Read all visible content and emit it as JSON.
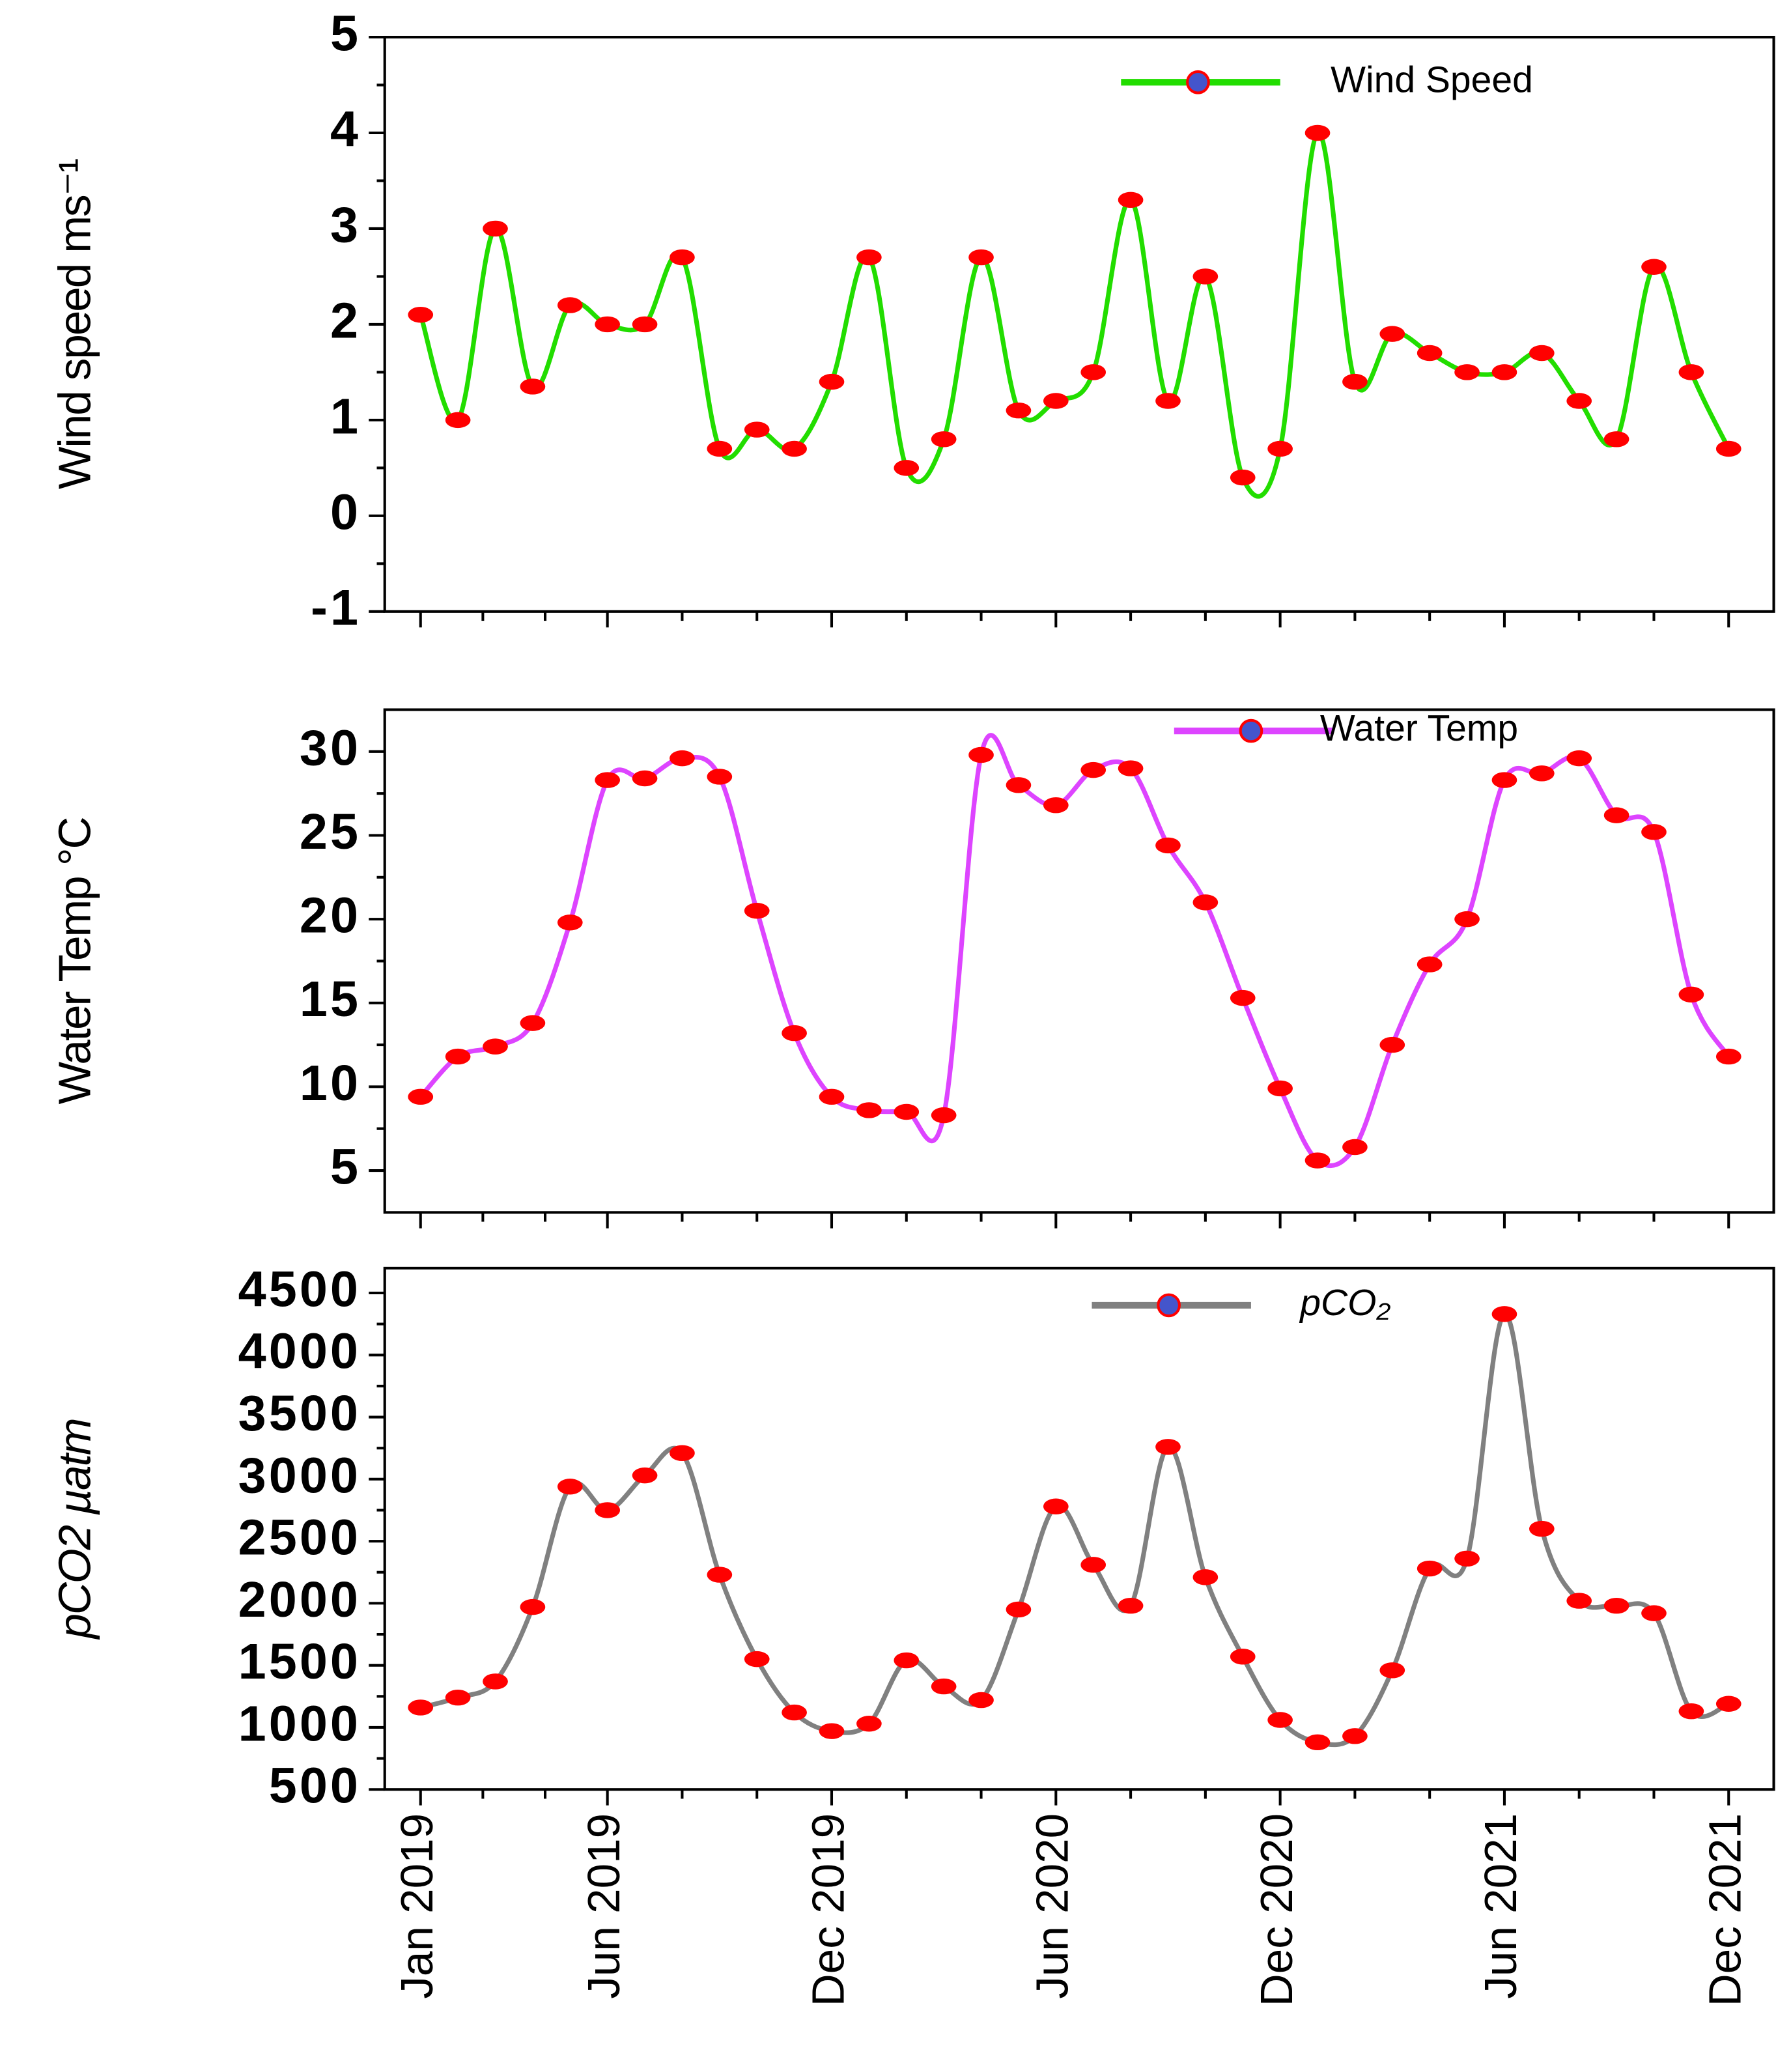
{
  "chart_data": [
    {
      "type": "line",
      "ylabel": "Wind speed ms⁻¹",
      "x": [
        "2019-01",
        "2019-02",
        "2019-03",
        "2019-04",
        "2019-05",
        "2019-06",
        "2019-07",
        "2019-08",
        "2019-09",
        "2019-10",
        "2019-11",
        "2019-12",
        "2020-01",
        "2020-02",
        "2020-03",
        "2020-04",
        "2020-05",
        "2020-06",
        "2020-07",
        "2020-08",
        "2020-09",
        "2020-10",
        "2020-11",
        "2020-12",
        "2021-01",
        "2021-02",
        "2021-03",
        "2021-04",
        "2021-05",
        "2021-06",
        "2021-07",
        "2021-08",
        "2021-09",
        "2021-10",
        "2021-11",
        "2021-12"
      ],
      "xlim": [
        "2019-01",
        "2021-12"
      ],
      "series": [
        {
          "name": "Wind Speed",
          "color": "#22dd00",
          "marker_color": "#ff0000",
          "values": [
            2.1,
            1.0,
            3.0,
            1.35,
            2.2,
            2.0,
            2.0,
            2.7,
            0.7,
            0.9,
            0.7,
            1.4,
            2.7,
            0.5,
            0.8,
            2.7,
            1.1,
            1.2,
            1.5,
            3.3,
            1.2,
            2.5,
            0.4,
            0.7,
            4.0,
            1.4,
            1.9,
            1.7,
            1.5,
            1.5,
            1.7,
            1.2,
            0.8,
            2.6,
            1.5,
            0.7
          ]
        }
      ],
      "ylim": [
        -1,
        5
      ],
      "yticks": [
        -1,
        0,
        1,
        2,
        3,
        4,
        5
      ]
    },
    {
      "type": "line",
      "ylabel": "Water Temp °C",
      "x": [
        "2019-01",
        "2019-02",
        "2019-03",
        "2019-04",
        "2019-05",
        "2019-06",
        "2019-07",
        "2019-08",
        "2019-09",
        "2019-10",
        "2019-11",
        "2019-12",
        "2020-01",
        "2020-02",
        "2020-03",
        "2020-04",
        "2020-05",
        "2020-06",
        "2020-07",
        "2020-08",
        "2020-09",
        "2020-10",
        "2020-11",
        "2020-12",
        "2021-01",
        "2021-02",
        "2021-03",
        "2021-04",
        "2021-05",
        "2021-06",
        "2021-07",
        "2021-08",
        "2021-09",
        "2021-10",
        "2021-11",
        "2021-12"
      ],
      "xlim": [
        "2019-01",
        "2021-12"
      ],
      "series": [
        {
          "name": "Water Temp",
          "color": "#dd44ff",
          "marker_color": "#ff0000",
          "values": [
            9.4,
            11.8,
            12.4,
            13.8,
            19.8,
            28.3,
            28.4,
            29.6,
            28.5,
            20.5,
            13.2,
            9.4,
            8.6,
            8.5,
            8.3,
            29.8,
            28.0,
            26.8,
            28.9,
            29.0,
            24.4,
            21.0,
            15.3,
            9.9,
            5.6,
            6.4,
            12.5,
            17.3,
            20.0,
            28.3,
            28.7,
            29.6,
            26.2,
            25.2,
            15.5,
            11.8
          ]
        }
      ],
      "ylim": [
        2.5,
        32.5
      ],
      "yticks": [
        5,
        10,
        15,
        20,
        25,
        30
      ]
    },
    {
      "type": "line",
      "ylabel": "pCO2 µatm",
      "x": [
        "2019-01",
        "2019-02",
        "2019-03",
        "2019-04",
        "2019-05",
        "2019-06",
        "2019-07",
        "2019-08",
        "2019-09",
        "2019-10",
        "2019-11",
        "2019-12",
        "2020-01",
        "2020-02",
        "2020-03",
        "2020-04",
        "2020-05",
        "2020-06",
        "2020-07",
        "2020-08",
        "2020-09",
        "2020-10",
        "2020-11",
        "2020-12",
        "2021-01",
        "2021-02",
        "2021-03",
        "2021-04",
        "2021-05",
        "2021-06",
        "2021-07",
        "2021-08",
        "2021-09",
        "2021-10",
        "2021-11",
        "2021-12"
      ],
      "xlim": [
        "2019-01",
        "2021-12"
      ],
      "xticks": [
        {
          "value": "2019-01",
          "label": "Jan 2019"
        },
        {
          "value": "2019-06",
          "label": "Jun 2019"
        },
        {
          "value": "2019-12",
          "label": "Dec 2019"
        },
        {
          "value": "2020-06",
          "label": "Jun 2020"
        },
        {
          "value": "2020-12",
          "label": "Dec 2020"
        },
        {
          "value": "2021-06",
          "label": "Jun 2021"
        },
        {
          "value": "2021-12",
          "label": "Dec 2021"
        }
      ],
      "series": [
        {
          "name": "pCO₂",
          "color": "#808080",
          "marker_color": "#ff0000",
          "values": [
            1160,
            1240,
            1370,
            1970,
            2940,
            2750,
            3030,
            3210,
            2230,
            1550,
            1120,
            970,
            1030,
            1540,
            1330,
            1220,
            1950,
            2780,
            2310,
            1980,
            3260,
            2210,
            1570,
            1060,
            880,
            930,
            1460,
            2280,
            2360,
            4330,
            2600,
            2020,
            1980,
            1920,
            1130,
            1190
          ]
        }
      ],
      "ylim": [
        500,
        4700
      ],
      "yticks": [
        500,
        1000,
        1500,
        2000,
        2500,
        3000,
        3500,
        4000,
        4500
      ]
    }
  ]
}
